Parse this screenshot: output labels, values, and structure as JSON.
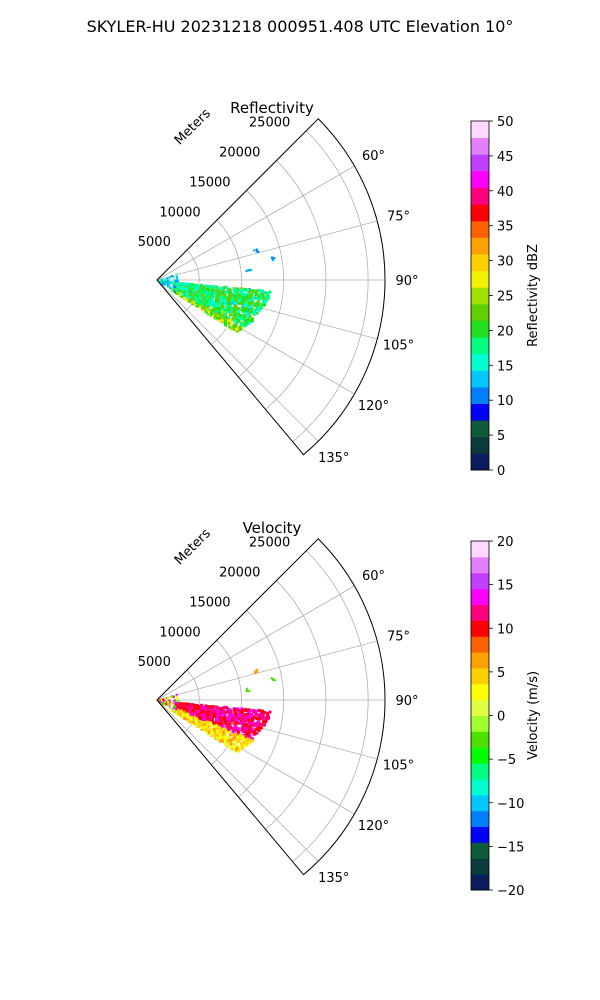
{
  "figure": {
    "suptitle": "SKYLER-HU  20231218  000951.408 UTC Elevation 10°"
  },
  "chart_data": [
    {
      "type": "heatmap",
      "subtype": "polar-ppi-sector",
      "title": "Reflectivity",
      "radial_label": "Meters",
      "r_ticks": [
        5000,
        10000,
        15000,
        20000,
        25000
      ],
      "r_max": 27000,
      "theta_ticks": [
        "60°",
        "75°",
        "90°",
        "105°",
        "120°",
        "135°"
      ],
      "theta_tick_values": [
        60,
        75,
        90,
        105,
        120,
        135
      ],
      "theta_range": [
        45,
        140
      ],
      "grid": true,
      "colorbar": {
        "label": "Reflectivity dBZ",
        "range": [
          0,
          50
        ],
        "ticks": [
          "0",
          "5",
          "10",
          "15",
          "20",
          "25",
          "30",
          "35",
          "40",
          "45",
          "50"
        ],
        "colors": [
          "#0b1d5e",
          "#0a3a3a",
          "#0f5a3a",
          "#0000ff",
          "#007fff",
          "#00c8ff",
          "#00ffd0",
          "#00ff80",
          "#20e020",
          "#60d000",
          "#a0e000",
          "#f0f000",
          "#ffd000",
          "#ffa000",
          "#ff6000",
          "#ff0000",
          "#ff0080",
          "#ff00ff",
          "#c040ff",
          "#e080ff",
          "#ffd8ff"
        ]
      }
    },
    {
      "type": "heatmap",
      "subtype": "polar-ppi-sector",
      "title": "Velocity",
      "radial_label": "Meters",
      "r_ticks": [
        5000,
        10000,
        15000,
        20000,
        25000
      ],
      "r_max": 27000,
      "theta_ticks": [
        "60°",
        "75°",
        "90°",
        "105°",
        "120°",
        "135°"
      ],
      "theta_tick_values": [
        60,
        75,
        90,
        105,
        120,
        135
      ],
      "theta_range": [
        45,
        140
      ],
      "grid": true,
      "colorbar": {
        "label": "Velocity (m/s)",
        "range": [
          -20,
          20
        ],
        "ticks": [
          "−20",
          "−15",
          "−10",
          "−5",
          "0",
          "5",
          "10",
          "15",
          "20"
        ],
        "colors": [
          "#0b1d5e",
          "#0a3a3a",
          "#0f5a3a",
          "#0000ff",
          "#007fff",
          "#00c8ff",
          "#00ffd0",
          "#00ff80",
          "#00ff00",
          "#50e000",
          "#a0ff30",
          "#e0ff40",
          "#ffff00",
          "#ffd000",
          "#ffa000",
          "#ff6000",
          "#ff0000",
          "#ff0080",
          "#ff00ff",
          "#c040ff",
          "#e080ff",
          "#ffd8ff"
        ]
      }
    }
  ]
}
